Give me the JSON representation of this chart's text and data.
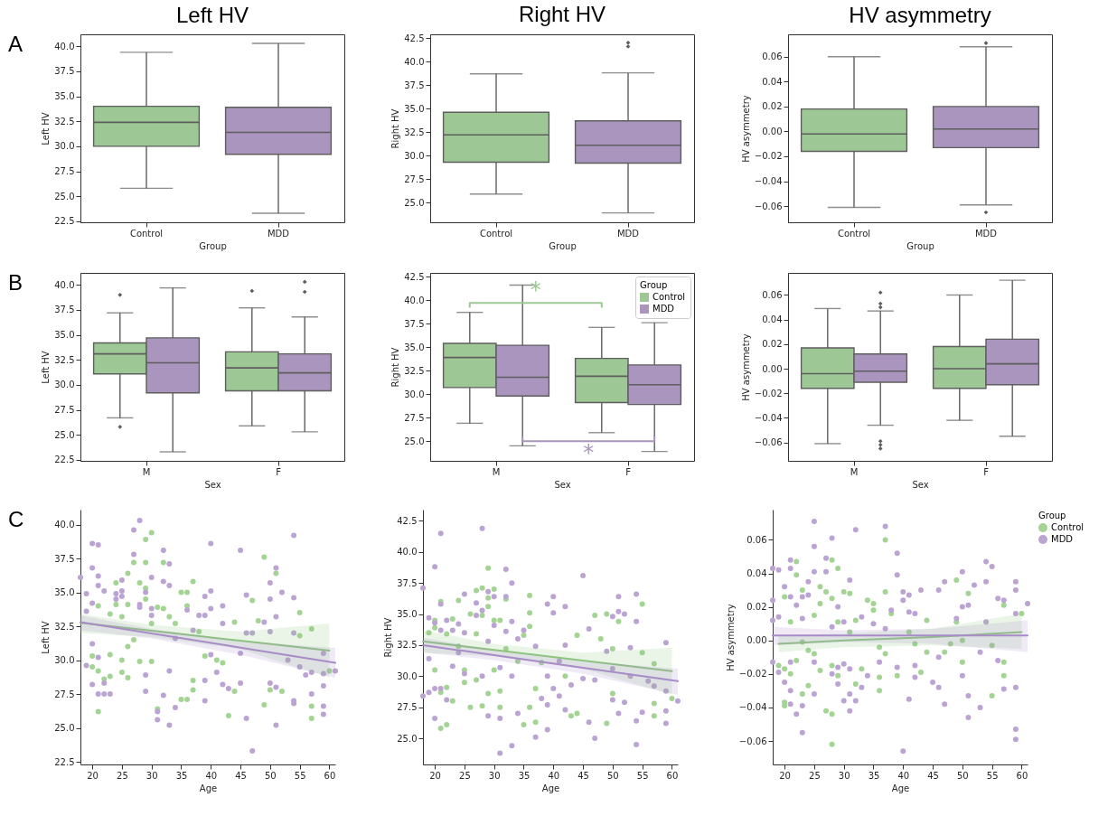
{
  "chart_data": [
    {
      "type": "box",
      "title": "Left HV",
      "xlabel": "Group",
      "ylabel": "Left HV",
      "categories": [
        "Control",
        "MDD"
      ],
      "colors": [
        "#9dc795",
        "#a995bd"
      ],
      "marker": "diamond",
      "annotations": [
        "A"
      ],
      "ylim": [
        22.4,
        41.2
      ],
      "yticks": [
        22.5,
        {
          "value": 25,
          "label": "25.0"
        },
        27.5,
        {
          "value": 30,
          "label": "30.0"
        },
        32.5,
        {
          "value": 35,
          "label": "35.0"
        },
        37.5,
        {
          "value": 40,
          "label": "40.0"
        }
      ],
      "boxes": [
        {
          "low": 25.8,
          "q1": 30.0,
          "median": 32.4,
          "q3": 34.0,
          "high": 39.4
        },
        {
          "low": 23.3,
          "q1": 29.2,
          "median": 31.4,
          "q3": 33.9,
          "high": 40.3
        }
      ]
    },
    {
      "type": "box",
      "title": "Right HV",
      "xlabel": "Group",
      "ylabel": "Right HV",
      "categories": [
        "Control",
        "MDD"
      ],
      "colors": [
        "#9dc795",
        "#a995bd"
      ],
      "marker": "diamond",
      "ylim": [
        22.9,
        42.9
      ],
      "yticks": [
        {
          "value": 25,
          "label": "25.0"
        },
        27.5,
        {
          "value": 30,
          "label": "30.0"
        },
        32.5,
        {
          "value": 35,
          "label": "35.0"
        },
        37.5,
        {
          "value": 40,
          "label": "40.0"
        },
        42.5
      ],
      "boxes": [
        {
          "low": 25.9,
          "q1": 29.3,
          "median": 32.2,
          "q3": 34.6,
          "high": 38.7
        },
        {
          "low": 23.9,
          "q1": 29.2,
          "median": 31.1,
          "q3": 33.7,
          "high": 38.8,
          "outliers": [
            41.6,
            42.0
          ]
        }
      ]
    },
    {
      "type": "box",
      "title": "HV asymmetry",
      "xlabel": "Group",
      "ylabel": "HV asymmetry",
      "categories": [
        "Control",
        "MDD"
      ],
      "colors": [
        "#9dc795",
        "#a995bd"
      ],
      "marker": "diamond",
      "ylim": [
        -0.073,
        0.078
      ],
      "yticks": [
        {
          "value": -0.06,
          "label": "−0.06"
        },
        {
          "value": -0.04,
          "label": "−0.04"
        },
        {
          "value": -0.02,
          "label": "−0.02"
        },
        {
          "value": 0,
          "label": "0.00"
        },
        0.02,
        0.04,
        0.06
      ],
      "boxes": [
        {
          "low": -0.061,
          "q1": -0.016,
          "median": -0.002,
          "q3": 0.018,
          "high": 0.06
        },
        {
          "low": -0.059,
          "q1": -0.013,
          "median": 0.002,
          "q3": 0.02,
          "high": 0.068,
          "outliers": [
            0.071,
            -0.065
          ]
        }
      ]
    },
    {
      "type": "box",
      "xlabel": "Sex",
      "ylabel": "Left HV",
      "categories": [
        "M",
        "F"
      ],
      "marker": "diamond",
      "annotations": [
        "B"
      ],
      "ylim": [
        22.4,
        41.2
      ],
      "yticks": [
        22.5,
        {
          "value": 25,
          "label": "25.0"
        },
        27.5,
        {
          "value": 30,
          "label": "30.0"
        },
        32.5,
        {
          "value": 35,
          "label": "35.0"
        },
        37.5,
        {
          "value": 40,
          "label": "40.0"
        }
      ],
      "series": [
        {
          "color": "#9dc795",
          "boxes": [
            {
              "low": 26.7,
              "q1": 31.1,
              "median": 33.1,
              "q3": 34.2,
              "high": 37.2,
              "outliers": [
                39.0,
                25.8
              ]
            },
            {
              "low": 25.9,
              "q1": 29.4,
              "median": 31.7,
              "q3": 33.3,
              "high": 37.7,
              "outliers": [
                39.4
              ]
            }
          ]
        },
        {
          "color": "#a995bd",
          "boxes": [
            {
              "low": 23.3,
              "q1": 29.2,
              "median": 32.2,
              "q3": 34.7,
              "high": 39.7
            },
            {
              "low": 25.3,
              "q1": 29.4,
              "median": 31.2,
              "q3": 33.1,
              "high": 36.8,
              "outliers": [
                39.3,
                40.3
              ]
            }
          ]
        }
      ]
    },
    {
      "type": "box",
      "xlabel": "Sex",
      "ylabel": "Right HV",
      "categories": [
        "M",
        "F"
      ],
      "marker": "diamond",
      "legend": "top right",
      "legend_title": "Group",
      "annotations": [
        "*",
        "*"
      ],
      "ylim": [
        22.9,
        42.9
      ],
      "yticks": [
        {
          "value": 25,
          "label": "25.0"
        },
        27.5,
        {
          "value": 30,
          "label": "30.0"
        },
        32.5,
        {
          "value": 35,
          "label": "35.0"
        },
        37.5,
        {
          "value": 40,
          "label": "40.0"
        },
        42.5
      ],
      "series": [
        {
          "name": "Control",
          "color": "#9dc795",
          "boxes": [
            {
              "low": 26.9,
              "q1": 30.7,
              "median": 33.9,
              "q3": 35.4,
              "high": 38.7
            },
            {
              "low": 25.9,
              "q1": 29.1,
              "median": 31.9,
              "q3": 33.8,
              "high": 37.1
            }
          ]
        },
        {
          "name": "MDD",
          "color": "#a995bd",
          "boxes": [
            {
              "low": 24.5,
              "q1": 29.8,
              "median": 31.8,
              "q3": 35.2,
              "high": 41.6
            },
            {
              "low": 23.9,
              "q1": 28.9,
              "median": 31.0,
              "q3": 33.1,
              "high": 37.6
            }
          ]
        }
      ]
    },
    {
      "type": "box",
      "xlabel": "Sex",
      "ylabel": "HV asymmetry",
      "categories": [
        "M",
        "F"
      ],
      "marker": "diamond",
      "ylim": [
        -0.075,
        0.078
      ],
      "yticks": [
        {
          "value": -0.06,
          "label": "−0.06"
        },
        {
          "value": -0.04,
          "label": "−0.04"
        },
        {
          "value": -0.02,
          "label": "−0.02"
        },
        {
          "value": 0,
          "label": "0.00"
        },
        0.02,
        0.04,
        0.06
      ],
      "series": [
        {
          "color": "#9dc795",
          "boxes": [
            {
              "low": -0.061,
              "q1": -0.016,
              "median": -0.004,
              "q3": 0.017,
              "high": 0.049
            },
            {
              "low": -0.042,
              "q1": -0.016,
              "median": 0.0,
              "q3": 0.018,
              "high": 0.06
            }
          ]
        },
        {
          "color": "#a995bd",
          "boxes": [
            {
              "low": -0.046,
              "q1": -0.011,
              "median": -0.002,
              "q3": 0.012,
              "high": 0.047,
              "outliers": [
                0.062,
                0.053,
                0.05,
                -0.059,
                -0.062,
                -0.065
              ]
            },
            {
              "low": -0.055,
              "q1": -0.013,
              "median": 0.004,
              "q3": 0.024,
              "high": 0.072
            }
          ]
        }
      ]
    },
    {
      "type": "scatter",
      "xlabel": "Age",
      "ylabel": "Left HV",
      "annotations": [
        "C"
      ],
      "xlim": [
        18,
        61
      ],
      "xticks": [
        20,
        25,
        30,
        35,
        40,
        45,
        50,
        55,
        60
      ],
      "ylim": [
        22.3,
        41.1
      ],
      "yticks": [
        22.5,
        {
          "value": 25,
          "label": "25.0"
        },
        27.5,
        {
          "value": 30,
          "label": "30.0"
        },
        32.5,
        {
          "value": 35,
          "label": "35.0"
        },
        37.5,
        {
          "value": 40,
          "label": "40.0"
        }
      ],
      "series": [
        {
          "type": "scatter",
          "marker": "circle",
          "color": "#a3d493",
          "x": [
            20,
            20,
            21,
            21,
            21,
            22,
            23,
            23,
            23,
            24,
            24,
            25,
            25,
            25,
            26,
            26,
            26,
            26,
            27,
            27,
            28,
            28,
            29,
            29,
            29,
            29,
            30,
            30,
            30,
            31,
            31,
            32,
            32,
            33,
            34,
            35,
            35,
            36,
            36,
            36,
            37,
            37,
            37,
            38,
            39,
            41,
            42,
            44,
            44,
            43,
            47,
            48,
            49,
            49,
            50,
            51,
            52,
            55,
            55,
            57,
            57,
            57,
            60
          ],
          "values": [
            30.3,
            29.5,
            34.0,
            26.2,
            29.2,
            28.6,
            33.4,
            28.8,
            30.4,
            35.7,
            34.1,
            33.2,
            30.0,
            29.1,
            36.4,
            34.1,
            31.0,
            28.7,
            37.2,
            31.5,
            35.7,
            29.9,
            38.9,
            37.2,
            35.3,
            34.5,
            39.4,
            32.7,
            29.9,
            33.9,
            26.4,
            37.2,
            33.8,
            33.2,
            32.7,
            35.0,
            27.1,
            35.0,
            34.0,
            27.1,
            35.8,
            28.5,
            27.8,
            32.1,
            30.3,
            30.0,
            29.8,
            32.8,
            27.7,
            25.9,
            34.4,
            32.9,
            37.6,
            26.7,
            27.8,
            36.4,
            27.7,
            33.5,
            31.8,
            32.3,
            26.6,
            25.7,
            29.2
          ]
        },
        {
          "type": "scatter",
          "marker": "circle",
          "color": "#bba3d4",
          "x": [
            18,
            20,
            21,
            20,
            21,
            21,
            22,
            19,
            20,
            19,
            20,
            19,
            20,
            21,
            22,
            23,
            22,
            21,
            24,
            24,
            25,
            25,
            25,
            27,
            27,
            28,
            28,
            28,
            29,
            29,
            29,
            30,
            30,
            30,
            31,
            31,
            32,
            32,
            33,
            33,
            33,
            32,
            34,
            34,
            33,
            36,
            37,
            38,
            39,
            39,
            39,
            39,
            40,
            40,
            40,
            40,
            41,
            42,
            42,
            42,
            43,
            45,
            45,
            45,
            46,
            46,
            46,
            47,
            47,
            49,
            50,
            50,
            50,
            50,
            51,
            51,
            51,
            51,
            52,
            53,
            54,
            54,
            54,
            54,
            54,
            55,
            56,
            57,
            57,
            59,
            59,
            59,
            59,
            59,
            61
          ],
          "values": [
            36.1,
            38.6,
            38.5,
            36.8,
            36.2,
            35.5,
            35.1,
            34.9,
            34.2,
            33.6,
            31.2,
            29.6,
            28.2,
            27.5,
            27.5,
            27.5,
            28.3,
            30.2,
            34.9,
            34.5,
            35.9,
            35.1,
            34.7,
            39.6,
            37.8,
            40.3,
            33.9,
            34.1,
            35.0,
            27.7,
            28.9,
            36.1,
            33.8,
            33.3,
            26.2,
            25.6,
            38.1,
            35.8,
            37.1,
            35.5,
            25.2,
            27.4,
            31.6,
            26.5,
            29.2,
            33.7,
            32.2,
            33.3,
            33.3,
            34.7,
            27.0,
            28.5,
            38.6,
            35.1,
            33.8,
            30.4,
            29.1,
            34.0,
            32.7,
            28.2,
            27.9,
            38.1,
            28.3,
            30.5,
            34.8,
            32.0,
            25.7,
            32.0,
            23.3,
            32.8,
            35.7,
            34.5,
            32.1,
            28.3,
            36.8,
            33.2,
            28.0,
            25.2,
            35.0,
            30.0,
            39.2,
            34.6,
            32.0,
            27.0,
            26.8,
            29.5,
            28.9,
            29.1,
            27.5,
            30.5,
            29.0,
            28.1,
            26.6,
            26.0,
            29.2
          ]
        },
        {
          "type": "line",
          "marker": "none",
          "color": "#8dc67d",
          "x": [
            18,
            30,
            45,
            60
          ],
          "values": [
            32.75,
            32.16,
            31.43,
            30.7
          ],
          "lower": [
            32.0,
            31.7,
            30.8,
            28.7
          ],
          "upper": [
            33.4,
            32.6,
            32.1,
            32.7
          ]
        },
        {
          "type": "line",
          "marker": "none",
          "color": "#a98cc7",
          "x": [
            18,
            30,
            45,
            61
          ],
          "values": [
            32.8,
            31.96,
            30.92,
            29.8
          ],
          "lower": [
            32.2,
            31.6,
            30.4,
            28.7
          ],
          "upper": [
            33.3,
            32.3,
            31.4,
            30.9
          ]
        }
      ]
    },
    {
      "type": "scatter",
      "xlabel": "Age",
      "ylabel": "Right HV",
      "xlim": [
        18,
        61
      ],
      "xticks": [
        20,
        25,
        30,
        35,
        40,
        45,
        50,
        55,
        60
      ],
      "ylim": [
        22.9,
        43.4
      ],
      "yticks": [
        {
          "value": 25,
          "label": "25.0"
        },
        27.5,
        {
          "value": 30,
          "label": "30.0"
        },
        32.5,
        {
          "value": 35,
          "label": "35.0"
        },
        37.5,
        {
          "value": 40,
          "label": "40.0"
        },
        42.5
      ],
      "series": [
        {
          "type": "scatter",
          "marker": "circle",
          "color": "#a3d493",
          "x": [
            19,
            20,
            20,
            20,
            21,
            21,
            21,
            22,
            22,
            22,
            23,
            23,
            24,
            24,
            25,
            25,
            26,
            26,
            27,
            27,
            27,
            28,
            28,
            28,
            29,
            29,
            29,
            29,
            30,
            30,
            30,
            31,
            31,
            31,
            32,
            32,
            34,
            35,
            35,
            36,
            36,
            36,
            36,
            37,
            37,
            38,
            42,
            43,
            44,
            44,
            47,
            48,
            49,
            49,
            50,
            50,
            51,
            55,
            55,
            57,
            57,
            57,
            60
          ],
          "values": [
            33.5,
            34.5,
            33.9,
            30.5,
            36.0,
            28.7,
            25.8,
            33.4,
            29.1,
            26.1,
            34.6,
            28.0,
            36.1,
            32.4,
            30.5,
            29.5,
            35.0,
            27.5,
            36.9,
            33.4,
            29.7,
            37.1,
            34.9,
            27.6,
            38.7,
            36.3,
            35.6,
            28.6,
            37.0,
            34.5,
            30.5,
            34.5,
            28.8,
            27.5,
            36.2,
            32.2,
            31.2,
            33.3,
            26.1,
            36.5,
            35.1,
            34.0,
            27.5,
            29.0,
            26.3,
            31.1,
            30.0,
            26.8,
            33.3,
            27.0,
            34.9,
            33.0,
            35.0,
            26.2,
            32.2,
            28.6,
            34.4,
            35.8,
            31.9,
            31.0,
            27.8,
            26.8,
            28.2
          ]
        },
        {
          "type": "scatter",
          "marker": "circle",
          "color": "#bba3d4",
          "x": [
            18,
            18,
            19,
            19,
            19,
            20,
            20,
            20,
            20,
            21,
            21,
            21,
            21,
            22,
            22,
            23,
            23,
            24,
            24,
            25,
            25,
            25,
            27,
            27,
            28,
            28,
            28,
            29,
            29,
            29,
            30,
            30,
            31,
            31,
            31,
            32,
            32,
            32,
            33,
            33,
            33,
            33,
            34,
            34,
            35,
            37,
            37,
            38,
            39,
            39,
            39,
            39,
            40,
            40,
            40,
            41,
            41,
            42,
            42,
            42,
            43,
            45,
            45,
            46,
            46,
            47,
            47,
            49,
            50,
            50,
            50,
            51,
            51,
            51,
            52,
            52,
            53,
            53,
            54,
            54,
            54,
            54,
            55,
            56,
            57,
            59,
            59,
            59,
            59,
            61
          ],
          "values": [
            37.1,
            28.4,
            34.7,
            31.4,
            28.7,
            38.8,
            34.3,
            26.6,
            29.0,
            41.5,
            35.8,
            33.7,
            29.0,
            34.5,
            28.1,
            33.7,
            30.8,
            34.2,
            31.9,
            36.6,
            33.5,
            30.2,
            35.9,
            34.9,
            41.9,
            35.3,
            30.0,
            36.8,
            32.8,
            26.8,
            36.4,
            34.1,
            30.7,
            26.6,
            23.8,
            38.6,
            36.4,
            33.6,
            37.5,
            34.4,
            24.4,
            30.0,
            33.0,
            27.0,
            33.7,
            32.4,
            25.1,
            28.2,
            35.8,
            30.0,
            27.7,
            25.7,
            36.4,
            35.1,
            29.0,
            31.2,
            28.4,
            35.6,
            32.5,
            27.3,
            29.3,
            38.1,
            29.8,
            33.8,
            26.3,
            25.0,
            29.7,
            32.0,
            34.8,
            30.6,
            28.1,
            36.4,
            35.2,
            27.0,
            35.0,
            27.9,
            32.3,
            30.0,
            36.6,
            34.4,
            24.5,
            26.4,
            27.1,
            29.6,
            29.2,
            32.7,
            28.8,
            27.2,
            26.2,
            28.0
          ]
        },
        {
          "type": "line",
          "marker": "none",
          "color": "#8dc67d",
          "x": [
            18,
            30,
            45,
            60
          ],
          "values": [
            32.8,
            32.11,
            31.26,
            30.4
          ],
          "lower": [
            31.9,
            31.6,
            30.6,
            28.5
          ],
          "upper": [
            33.7,
            32.6,
            31.9,
            32.3
          ]
        },
        {
          "type": "line",
          "marker": "none",
          "color": "#a98cc7",
          "x": [
            18,
            30,
            45,
            61
          ],
          "values": [
            32.5,
            31.69,
            30.68,
            29.6
          ],
          "lower": [
            31.9,
            31.3,
            30.2,
            28.5
          ],
          "upper": [
            33.1,
            32.1,
            31.2,
            30.6
          ]
        }
      ]
    },
    {
      "type": "scatter",
      "xlabel": "Age",
      "ylabel": "HV asymmetry",
      "legend": "right",
      "legend_title": "Group",
      "xlim": [
        18,
        61
      ],
      "xticks": [
        20,
        25,
        30,
        35,
        40,
        45,
        50,
        55,
        60
      ],
      "ylim": [
        -0.074,
        0.078
      ],
      "yticks": [
        {
          "value": -0.06,
          "label": "−0.06"
        },
        {
          "value": -0.04,
          "label": "−0.04"
        },
        {
          "value": -0.02,
          "label": "−0.02"
        },
        {
          "value": 0,
          "label": "0.00"
        },
        0.02,
        0.04,
        0.06
      ],
      "series": [
        {
          "type": "scatter",
          "marker": "circle",
          "name": "Control",
          "color": "#a3d493",
          "x": [
            19,
            20,
            20,
            20,
            20,
            21,
            21,
            22,
            22,
            22,
            23,
            23,
            23,
            24,
            24,
            25,
            25,
            26,
            26,
            26,
            27,
            27,
            28,
            28,
            28,
            28,
            28,
            29,
            29,
            29,
            30,
            31,
            31,
            32,
            32,
            33,
            34,
            35,
            35,
            36,
            36,
            36,
            37,
            37,
            37,
            38,
            39,
            41,
            42,
            43,
            44,
            44,
            47,
            48,
            49,
            49,
            50,
            50,
            51,
            55,
            55,
            57,
            57,
            57,
            60
          ],
          "values": [
            -0.015,
            0.026,
            -0.017,
            -0.037,
            -0.039,
            0.011,
            -0.02,
            0.047,
            0.039,
            -0.012,
            0.03,
            -0.001,
            -0.032,
            -0.006,
            -0.027,
            0.015,
            -0.008,
            0.032,
            0.022,
            -0.018,
            0.029,
            -0.042,
            0.048,
            0.025,
            -0.015,
            -0.044,
            -0.062,
            0.043,
            0.011,
            -0.021,
            0.029,
            0.028,
            0.005,
            0.012,
            -0.026,
            -0.017,
            0.024,
            0.022,
            0.018,
            -0.004,
            -0.022,
            -0.03,
            0.06,
            0.029,
            -0.008,
            0.016,
            -0.021,
            0.005,
            -0.002,
            -0.019,
            0.012,
            -0.007,
            -0.007,
            -0.002,
            0.036,
            0.011,
            0.0,
            -0.013,
            0.028,
            -0.003,
            -0.033,
            0.021,
            -0.013,
            -0.021,
            0.016
          ]
        },
        {
          "type": "scatter",
          "marker": "circle",
          "name": "MDD",
          "color": "#bba3d4",
          "x": [
            18,
            18,
            18,
            19,
            19,
            19,
            18,
            20,
            20,
            21,
            21,
            21,
            21,
            21,
            21,
            22,
            22,
            23,
            23,
            23,
            23,
            24,
            24,
            25,
            25,
            25,
            25,
            25,
            27,
            27,
            28,
            28,
            28,
            29,
            29,
            29,
            30,
            30,
            30,
            31,
            31,
            31,
            31,
            32,
            32,
            33,
            33,
            34,
            35,
            36,
            37,
            37,
            38,
            39,
            39,
            39,
            40,
            40,
            40,
            41,
            41,
            41,
            42,
            42,
            42,
            43,
            45,
            46,
            46,
            46,
            47,
            47,
            49,
            50,
            50,
            50,
            51,
            51,
            51,
            52,
            53,
            53,
            54,
            54,
            54,
            55,
            56,
            56,
            57,
            57,
            59,
            59,
            59,
            59,
            59,
            59,
            61
          ],
          "values": [
            0.043,
            0.024,
            0.012,
            0.042,
            0.014,
            -0.019,
            -0.013,
            0.032,
            -0.025,
            0.048,
            0.043,
            0.026,
            -0.013,
            -0.03,
            -0.038,
            0.021,
            -0.044,
            0.026,
            0.013,
            -0.039,
            -0.055,
            0.035,
            0.027,
            0.071,
            0.056,
            0.041,
            -0.013,
            -0.032,
            0.049,
            0.041,
            0.061,
            0.008,
            -0.02,
            0.02,
            -0.016,
            -0.026,
            0.011,
            -0.014,
            -0.036,
            0.036,
            -0.017,
            -0.042,
            -0.032,
            0.066,
            -0.036,
            0.014,
            -0.028,
            -0.021,
            0.01,
            -0.013,
            0.068,
            0.007,
            0.018,
            0.052,
            0.039,
            -0.016,
            0.029,
            0.024,
            -0.066,
            0.027,
            0.017,
            -0.035,
            0.016,
            -0.015,
            -0.022,
            0.03,
            -0.025,
            0.03,
            -0.01,
            -0.028,
            0.035,
            -0.038,
            0.013,
            0.041,
            0.02,
            -0.021,
            0.021,
            -0.033,
            -0.046,
            0.033,
            -0.04,
            -0.007,
            0.047,
            0.035,
            0.011,
            0.044,
            0.025,
            -0.012,
            0.024,
            -0.029,
            0.035,
            0.03,
            0.016,
            -0.028,
            -0.053,
            -0.059,
            0.022
          ]
        },
        {
          "type": "line",
          "marker": "none",
          "color": "#8dc67d",
          "x": [
            19,
            30,
            45,
            60
          ],
          "values": [
            -0.002,
            0.0,
            0.002,
            0.005
          ],
          "lower": [
            -0.007,
            -0.004,
            -0.003,
            -0.005
          ],
          "upper": [
            0.003,
            0.004,
            0.007,
            0.016
          ]
        },
        {
          "type": "line",
          "marker": "none",
          "color": "#a98cc7",
          "x": [
            18,
            30,
            45,
            61
          ],
          "values": [
            0.003,
            0.003,
            0.003,
            0.003
          ],
          "lower": [
            -0.003,
            -0.001,
            -0.002,
            -0.007
          ],
          "upper": [
            0.008,
            0.006,
            0.007,
            0.012
          ]
        }
      ]
    }
  ]
}
